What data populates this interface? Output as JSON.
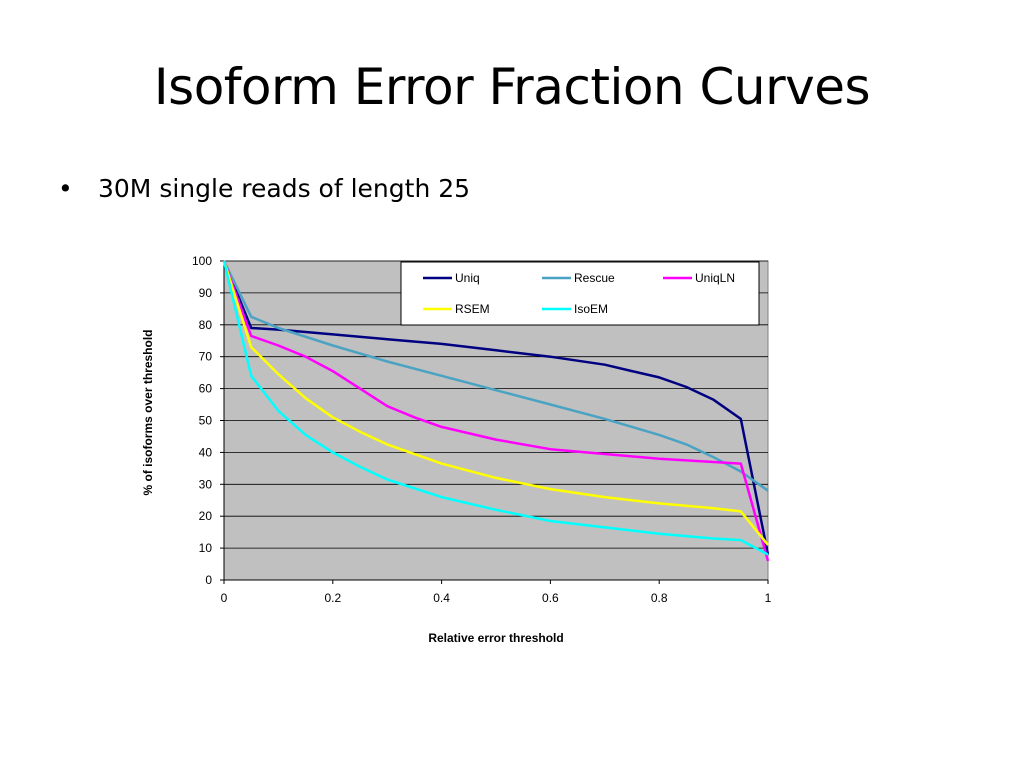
{
  "slide": {
    "title": "Isoform Error Fraction Curves",
    "bullet": "30M single reads of length 25"
  },
  "chart_data": {
    "type": "line",
    "xlabel": "Relative error threshold",
    "ylabel": "% of isoforms over threshold",
    "xlim": [
      0,
      1
    ],
    "ylim": [
      0,
      100
    ],
    "x_ticks": [
      "0",
      "0.2",
      "0.4",
      "0.6",
      "0.8",
      "1"
    ],
    "y_ticks": [
      "0",
      "10",
      "20",
      "30",
      "40",
      "50",
      "60",
      "70",
      "80",
      "90",
      "100"
    ],
    "grid": true,
    "plot_background": "#c0c0c0",
    "legend_position": "top-right",
    "series": [
      {
        "name": "Uniq",
        "color": "#000080",
        "points": [
          [
            0,
            100
          ],
          [
            0.05,
            79
          ],
          [
            0.1,
            78.5
          ],
          [
            0.2,
            77
          ],
          [
            0.3,
            75.5
          ],
          [
            0.4,
            74
          ],
          [
            0.5,
            72
          ],
          [
            0.6,
            70
          ],
          [
            0.7,
            67.5
          ],
          [
            0.75,
            65.5
          ],
          [
            0.8,
            63.5
          ],
          [
            0.85,
            60.5
          ],
          [
            0.9,
            56.5
          ],
          [
            0.95,
            50.5
          ],
          [
            1,
            8
          ]
        ]
      },
      {
        "name": "Rescue",
        "color": "#4ba3c3",
        "points": [
          [
            0,
            100
          ],
          [
            0.05,
            82.5
          ],
          [
            0.1,
            79
          ],
          [
            0.2,
            73.5
          ],
          [
            0.3,
            68.5
          ],
          [
            0.4,
            64
          ],
          [
            0.5,
            59.5
          ],
          [
            0.6,
            55
          ],
          [
            0.7,
            50.5
          ],
          [
            0.8,
            45.5
          ],
          [
            0.85,
            42.5
          ],
          [
            0.9,
            38.5
          ],
          [
            0.95,
            34
          ],
          [
            1,
            28
          ]
        ]
      },
      {
        "name": "UniqLN",
        "color": "#ff00ff",
        "points": [
          [
            0,
            100
          ],
          [
            0.05,
            76.5
          ],
          [
            0.1,
            73.5
          ],
          [
            0.15,
            70
          ],
          [
            0.2,
            65.5
          ],
          [
            0.25,
            60
          ],
          [
            0.3,
            54.5
          ],
          [
            0.35,
            51
          ],
          [
            0.4,
            48
          ],
          [
            0.5,
            44
          ],
          [
            0.6,
            41
          ],
          [
            0.7,
            39.5
          ],
          [
            0.8,
            38
          ],
          [
            0.9,
            37
          ],
          [
            0.95,
            36.5
          ],
          [
            1,
            6
          ]
        ]
      },
      {
        "name": "RSEM",
        "color": "#ffff00",
        "points": [
          [
            0,
            100
          ],
          [
            0.05,
            73
          ],
          [
            0.1,
            64.5
          ],
          [
            0.15,
            57
          ],
          [
            0.2,
            51
          ],
          [
            0.25,
            46.5
          ],
          [
            0.3,
            42.5
          ],
          [
            0.4,
            36.5
          ],
          [
            0.5,
            32
          ],
          [
            0.6,
            28.5
          ],
          [
            0.7,
            26
          ],
          [
            0.8,
            24
          ],
          [
            0.9,
            22.5
          ],
          [
            0.95,
            21.5
          ],
          [
            1,
            11
          ]
        ]
      },
      {
        "name": "IsoEM",
        "color": "#00ffff",
        "points": [
          [
            0,
            100
          ],
          [
            0.05,
            64
          ],
          [
            0.1,
            53
          ],
          [
            0.15,
            45.5
          ],
          [
            0.2,
            40
          ],
          [
            0.25,
            35.5
          ],
          [
            0.3,
            31.5
          ],
          [
            0.4,
            26
          ],
          [
            0.5,
            22
          ],
          [
            0.6,
            18.5
          ],
          [
            0.7,
            16.5
          ],
          [
            0.8,
            14.5
          ],
          [
            0.9,
            13
          ],
          [
            0.95,
            12.5
          ],
          [
            1,
            8
          ]
        ]
      }
    ]
  }
}
